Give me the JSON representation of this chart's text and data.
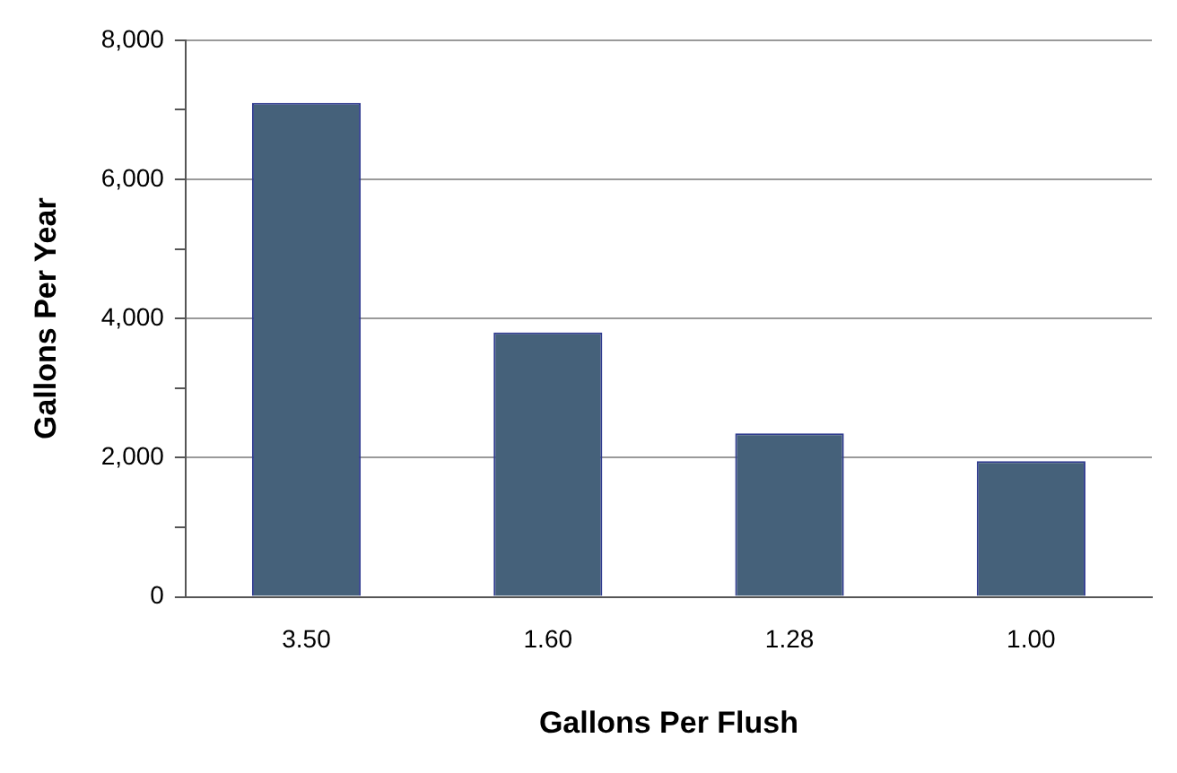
{
  "chart_data": {
    "type": "bar",
    "xlabel": "Gallons Per Flush",
    "ylabel": "Gallons Per Year",
    "categories": [
      "3.50",
      "1.60",
      "1.28",
      "1.00"
    ],
    "values": [
      7100,
      3800,
      2350,
      1950
    ],
    "color": "#45617a",
    "ylim": [
      0,
      8000
    ],
    "yticks": [
      0,
      {
        "value": 1000,
        "label": null
      },
      {
        "value": 2000,
        "label": "2,000"
      },
      {
        "value": 3000,
        "label": null
      },
      {
        "value": 4000,
        "label": "4,000"
      },
      {
        "value": 5000,
        "label": null
      },
      {
        "value": 6000,
        "label": "6,000"
      },
      {
        "value": 7000,
        "label": null
      },
      {
        "value": 8000,
        "label": "8,000"
      }
    ],
    "grid": "y",
    "legend": false
  }
}
